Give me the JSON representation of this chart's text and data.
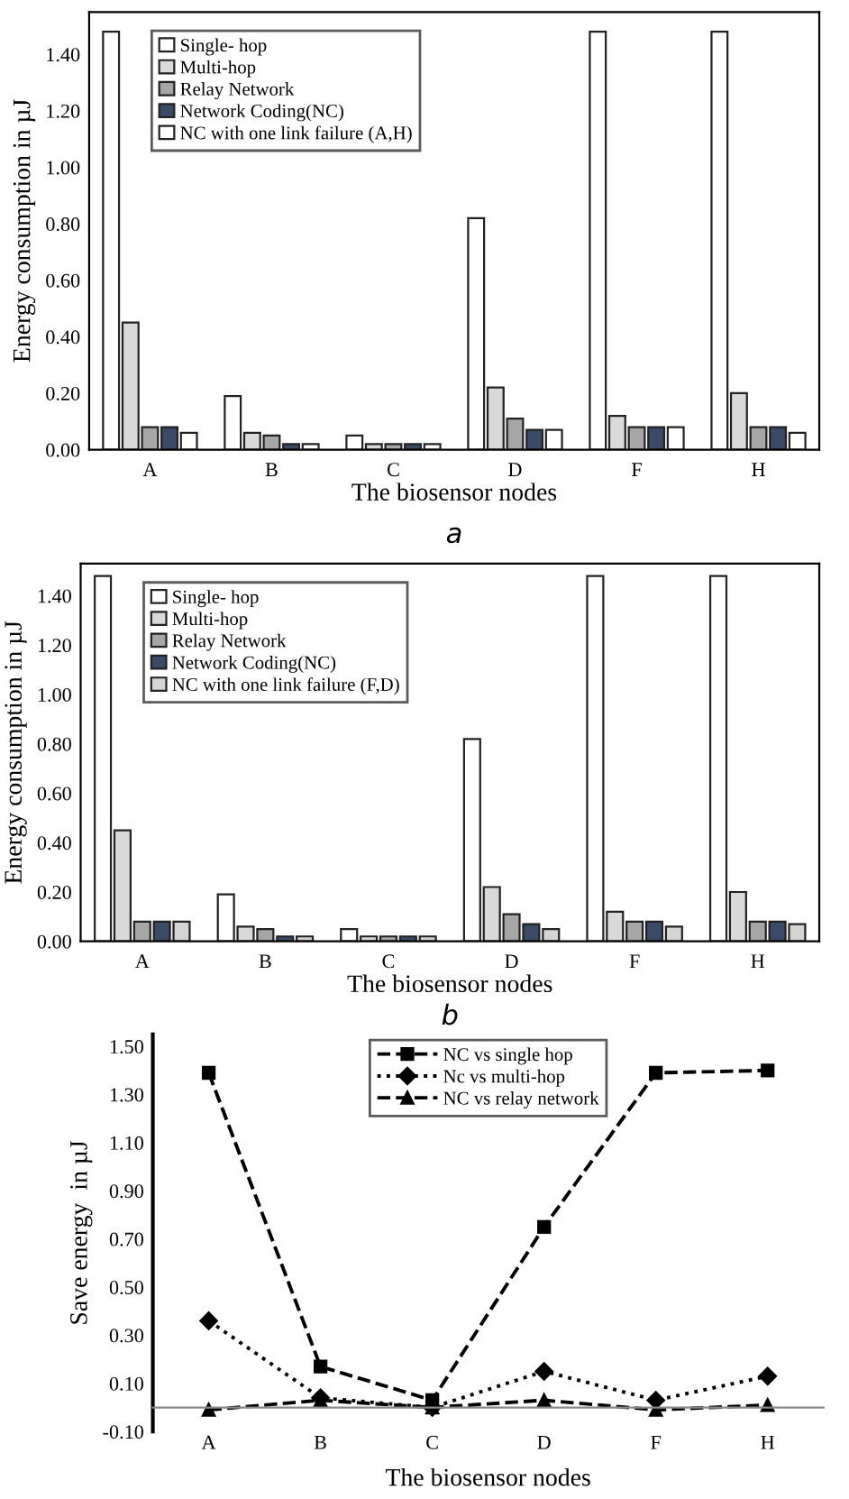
{
  "chart_data": [
    {
      "type": "bar",
      "xlabel": "The biosensor nodes",
      "ylabel": "Energy consumption in µJ",
      "annotations": [
        "a"
      ],
      "categories": [
        "A",
        "B",
        "C",
        "D",
        "F",
        "H"
      ],
      "ylim": [
        0,
        1.55
      ],
      "yticks": [
        {
          "value": 0,
          "label": "0.00"
        },
        {
          "value": 0.2,
          "label": "0.20"
        },
        {
          "value": 0.4,
          "label": "0.40"
        },
        {
          "value": 0.6,
          "label": "0.60"
        },
        {
          "value": 0.8,
          "label": "0.80"
        },
        {
          "value": 1.0,
          "label": "1.00"
        },
        {
          "value": 1.2,
          "label": "1.20"
        },
        {
          "value": 1.4,
          "label": "1.40"
        }
      ],
      "legend": "top left",
      "grid": false,
      "series": [
        {
          "name": "Single- hop",
          "color": "#ffffff",
          "values": [
            1.48,
            0.19,
            0.05,
            0.82,
            1.48,
            1.48
          ]
        },
        {
          "name": "Multi-hop",
          "color": "#d9d9d9",
          "values": [
            0.45,
            0.06,
            0.02,
            0.22,
            0.12,
            0.2
          ]
        },
        {
          "name": "Relay Network",
          "color": "#a6a6a6",
          "values": [
            0.08,
            0.05,
            0.02,
            0.11,
            0.08,
            0.08
          ]
        },
        {
          "name": "Network Coding(NC)",
          "color": "#3b4a66",
          "values": [
            0.08,
            0.02,
            0.02,
            0.07,
            0.08,
            0.08
          ]
        },
        {
          "name": "NC with one link failure (A,H)",
          "color": "#ffffff",
          "values": [
            0.06,
            0.02,
            0.02,
            0.07,
            0.08,
            0.06
          ]
        }
      ]
    },
    {
      "type": "bar",
      "xlabel": "The biosensor nodes",
      "ylabel": "Energy consumption in µJ",
      "annotations": [
        "b"
      ],
      "categories": [
        "A",
        "B",
        "C",
        "D",
        "F",
        "H"
      ],
      "ylim": [
        0,
        1.53
      ],
      "yticks": [
        {
          "value": 0,
          "label": "0.00"
        },
        {
          "value": 0.2,
          "label": "0.20"
        },
        {
          "value": 0.4,
          "label": "0.40"
        },
        {
          "value": 0.6,
          "label": "0.60"
        },
        {
          "value": 0.8,
          "label": "0.80"
        },
        {
          "value": 1.0,
          "label": "1.00"
        },
        {
          "value": 1.2,
          "label": "1.20"
        },
        {
          "value": 1.4,
          "label": "1.40"
        }
      ],
      "legend": "top left",
      "grid": false,
      "series": [
        {
          "name": "Single- hop",
          "color": "#ffffff",
          "values": [
            1.48,
            0.19,
            0.05,
            0.82,
            1.48,
            1.48
          ]
        },
        {
          "name": "Multi-hop",
          "color": "#d9d9d9",
          "values": [
            0.45,
            0.06,
            0.02,
            0.22,
            0.12,
            0.2
          ]
        },
        {
          "name": "Relay Network",
          "color": "#a6a6a6",
          "values": [
            0.08,
            0.05,
            0.02,
            0.11,
            0.08,
            0.08
          ]
        },
        {
          "name": "Network Coding(NC)",
          "color": "#3b4a66",
          "values": [
            0.08,
            0.02,
            0.02,
            0.07,
            0.08,
            0.08
          ]
        },
        {
          "name": "NC with one link failure (F,D)",
          "color": "#d4d4d4",
          "values": [
            0.08,
            0.02,
            0.02,
            0.05,
            0.06,
            0.07
          ]
        }
      ]
    },
    {
      "type": "line",
      "xlabel": "The biosensor nodes",
      "ylabel": "Save energy  in µJ",
      "categories": [
        "A",
        "B",
        "C",
        "D",
        "F",
        "H"
      ],
      "ylim": [
        -0.1,
        1.55
      ],
      "yticks": [
        {
          "value": -0.1,
          "label": "-0.10"
        },
        {
          "value": 0.1,
          "label": "0.10"
        },
        {
          "value": 0.3,
          "label": "0.30"
        },
        {
          "value": 0.5,
          "label": "0.50"
        },
        {
          "value": 0.7,
          "label": "0.70"
        },
        {
          "value": 0.9,
          "label": "0.90"
        },
        {
          "value": 1.1,
          "label": "1.10"
        },
        {
          "value": 1.3,
          "label": "1.30"
        },
        {
          "value": 1.5,
          "label": "1.50"
        }
      ],
      "legend": "top",
      "grid": false,
      "series": [
        {
          "name": "NC vs single hop",
          "color": "#000000",
          "marker": "square",
          "line_style": "dashed",
          "values": [
            1.39,
            0.17,
            0.03,
            0.75,
            1.39,
            1.4
          ]
        },
        {
          "name": "Nc vs multi-hop",
          "color": "#000000",
          "marker": "diamond",
          "line_style": "dotted",
          "values": [
            0.36,
            0.04,
            0.0,
            0.15,
            0.03,
            0.13
          ]
        },
        {
          "name": "NC vs relay network",
          "color": "#000000",
          "marker": "triangle",
          "line_style": "dashed",
          "values": [
            -0.01,
            0.03,
            0.0,
            0.03,
            -0.01,
            0.01
          ]
        }
      ]
    }
  ]
}
